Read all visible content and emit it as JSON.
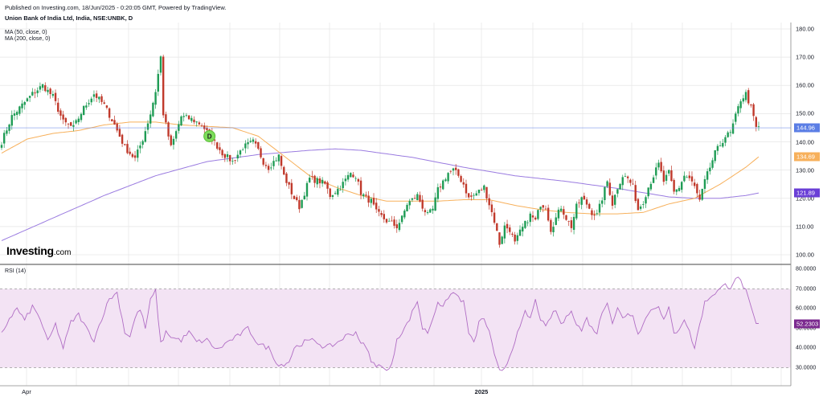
{
  "header": {
    "published": "Published on Investing.com, 18/Jun/2025 - 0:20:05 GMT, Powered by TradingView.",
    "title": "Union Bank of India Ltd, India, NSE:UNBK, D"
  },
  "legend": {
    "ma50": "MA (50, close, 0)",
    "ma200": "MA (200, close, 0)"
  },
  "logo": {
    "main": "Investing",
    "domain": ".com"
  },
  "colors": {
    "up": "#26a69a",
    "down": "#ef5350",
    "candle_up": "#1f9c55",
    "candle_down": "#c0392b",
    "ma50": "#f7b05b",
    "ma200": "#9a7be0",
    "last_price": "#5b7ee5",
    "rsi_line": "#b06dc4",
    "rsi_band": "#f3e3f4",
    "rsi_badge": "#7b2a8f",
    "grid": "#e6e6e6"
  },
  "price_axis": {
    "ticks": [
      "180.00",
      "170.00",
      "160.00",
      "150.00",
      "140.00",
      "130.00",
      "120.00",
      "110.00",
      "100.00"
    ]
  },
  "badges": {
    "last": "144.96",
    "ma50": "134.69",
    "ma200": "121.89",
    "rsi": "52.2303"
  },
  "rsi_panel": {
    "label": "RSI (14)",
    "ticks": [
      "80.0000",
      "70.0000",
      "60.0000",
      "50.0000",
      "40.0000",
      "30.0000"
    ]
  },
  "marker": {
    "label": "D"
  },
  "x_axis": {
    "ticks": [
      {
        "label": "Apr",
        "bold": false
      },
      {
        "label": "2025",
        "bold": true
      }
    ]
  },
  "chart_data": {
    "type": "candlestick",
    "title": "Union Bank of India Ltd, India, NSE:UNBK, D",
    "price_ylim": [
      98,
      182
    ],
    "rsi_ylim": [
      22,
      82
    ],
    "rsi_levels": [
      70,
      30
    ],
    "last_price": 144.96,
    "ma50_last": 134.69,
    "ma200_last": 121.89,
    "rsi_last": 52.2303,
    "close_anchors": [
      [
        0,
        140
      ],
      [
        4,
        149
      ],
      [
        8,
        153
      ],
      [
        12,
        157
      ],
      [
        16,
        160
      ],
      [
        20,
        156
      ],
      [
        24,
        147
      ],
      [
        28,
        145
      ],
      [
        32,
        152
      ],
      [
        36,
        157
      ],
      [
        40,
        153
      ],
      [
        44,
        146
      ],
      [
        48,
        138
      ],
      [
        52,
        134
      ],
      [
        55,
        141
      ],
      [
        58,
        150
      ],
      [
        60,
        158
      ],
      [
        62,
        170
      ],
      [
        63,
        150
      ],
      [
        66,
        138
      ],
      [
        70,
        149
      ],
      [
        74,
        148
      ],
      [
        78,
        146
      ],
      [
        82,
        141
      ],
      [
        86,
        136
      ],
      [
        90,
        133
      ],
      [
        94,
        138
      ],
      [
        98,
        140
      ],
      [
        100,
        137
      ],
      [
        102,
        133
      ],
      [
        104,
        131
      ],
      [
        108,
        135
      ],
      [
        110,
        128
      ],
      [
        112,
        124
      ],
      [
        114,
        120
      ],
      [
        116,
        117
      ],
      [
        118,
        122
      ],
      [
        120,
        127
      ],
      [
        124,
        126
      ],
      [
        126,
        125
      ],
      [
        128,
        121
      ],
      [
        132,
        124
      ],
      [
        136,
        129
      ],
      [
        138,
        128
      ],
      [
        140,
        122
      ],
      [
        142,
        120
      ],
      [
        144,
        119
      ],
      [
        146,
        115
      ],
      [
        150,
        112
      ],
      [
        154,
        110
      ],
      [
        156,
        113
      ],
      [
        158,
        118
      ],
      [
        162,
        121
      ],
      [
        164,
        117
      ],
      [
        166,
        114
      ],
      [
        168,
        116
      ],
      [
        170,
        123
      ],
      [
        174,
        129
      ],
      [
        176,
        130
      ],
      [
        178,
        128
      ],
      [
        180,
        125
      ],
      [
        182,
        120
      ],
      [
        184,
        121
      ],
      [
        188,
        124
      ],
      [
        190,
        118
      ],
      [
        192,
        112
      ],
      [
        194,
        104
      ],
      [
        196,
        110
      ],
      [
        198,
        109
      ],
      [
        200,
        104
      ],
      [
        202,
        108
      ],
      [
        204,
        111
      ],
      [
        206,
        114
      ],
      [
        208,
        112
      ],
      [
        210,
        118
      ],
      [
        212,
        117
      ],
      [
        214,
        109
      ],
      [
        216,
        113
      ],
      [
        218,
        117
      ],
      [
        220,
        113
      ],
      [
        222,
        110
      ],
      [
        224,
        117
      ],
      [
        226,
        120
      ],
      [
        228,
        118
      ],
      [
        230,
        115
      ],
      [
        232,
        114
      ],
      [
        234,
        120
      ],
      [
        236,
        126
      ],
      [
        238,
        118
      ],
      [
        240,
        124
      ],
      [
        242,
        128
      ],
      [
        244,
        127
      ],
      [
        246,
        124
      ],
      [
        248,
        116
      ],
      [
        250,
        119
      ],
      [
        252,
        124
      ],
      [
        254,
        128
      ],
      [
        256,
        132
      ],
      [
        258,
        126
      ],
      [
        260,
        129
      ],
      [
        262,
        122
      ],
      [
        264,
        124
      ],
      [
        266,
        128
      ],
      [
        268,
        127
      ],
      [
        270,
        124
      ],
      [
        272,
        119
      ],
      [
        274,
        126
      ],
      [
        276,
        131
      ],
      [
        278,
        136
      ],
      [
        280,
        139
      ],
      [
        282,
        142
      ],
      [
        284,
        143
      ],
      [
        286,
        149
      ],
      [
        288,
        155
      ],
      [
        290,
        157
      ],
      [
        292,
        152
      ],
      [
        294,
        145
      ],
      [
        295,
        145
      ]
    ],
    "rsi_anchors": [
      [
        0,
        47
      ],
      [
        3,
        55
      ],
      [
        6,
        60
      ],
      [
        9,
        54
      ],
      [
        12,
        61
      ],
      [
        15,
        55
      ],
      [
        18,
        43
      ],
      [
        21,
        52
      ],
      [
        24,
        40
      ],
      [
        27,
        53
      ],
      [
        30,
        57
      ],
      [
        33,
        50
      ],
      [
        36,
        44
      ],
      [
        39,
        55
      ],
      [
        42,
        65
      ],
      [
        45,
        68
      ],
      [
        48,
        48
      ],
      [
        50,
        46
      ],
      [
        52,
        55
      ],
      [
        54,
        60
      ],
      [
        56,
        50
      ],
      [
        58,
        64
      ],
      [
        60,
        69
      ],
      [
        62,
        42
      ],
      [
        64,
        48
      ],
      [
        67,
        45
      ],
      [
        70,
        44
      ],
      [
        73,
        48
      ],
      [
        76,
        43
      ],
      [
        80,
        44
      ],
      [
        84,
        39
      ],
      [
        88,
        43
      ],
      [
        92,
        46
      ],
      [
        96,
        50
      ],
      [
        100,
        42
      ],
      [
        104,
        40
      ],
      [
        108,
        31
      ],
      [
        112,
        33
      ],
      [
        114,
        40
      ],
      [
        118,
        43
      ],
      [
        122,
        44
      ],
      [
        126,
        40
      ],
      [
        130,
        42
      ],
      [
        134,
        46
      ],
      [
        138,
        48
      ],
      [
        140,
        43
      ],
      [
        142,
        40
      ],
      [
        144,
        34
      ],
      [
        146,
        30
      ],
      [
        148,
        32
      ],
      [
        150,
        28
      ],
      [
        152,
        31
      ],
      [
        154,
        45
      ],
      [
        156,
        48
      ],
      [
        158,
        52
      ],
      [
        160,
        58
      ],
      [
        162,
        64
      ],
      [
        164,
        50
      ],
      [
        166,
        48
      ],
      [
        168,
        55
      ],
      [
        170,
        64
      ],
      [
        172,
        60
      ],
      [
        174,
        66
      ],
      [
        176,
        68
      ],
      [
        178,
        66
      ],
      [
        180,
        63
      ],
      [
        182,
        48
      ],
      [
        184,
        42
      ],
      [
        186,
        53
      ],
      [
        188,
        55
      ],
      [
        190,
        48
      ],
      [
        192,
        36
      ],
      [
        194,
        28
      ],
      [
        196,
        30
      ],
      [
        198,
        36
      ],
      [
        200,
        44
      ],
      [
        202,
        50
      ],
      [
        204,
        58
      ],
      [
        206,
        55
      ],
      [
        208,
        64
      ],
      [
        210,
        55
      ],
      [
        212,
        50
      ],
      [
        214,
        56
      ],
      [
        216,
        59
      ],
      [
        218,
        52
      ],
      [
        220,
        55
      ],
      [
        222,
        60
      ],
      [
        224,
        52
      ],
      [
        226,
        49
      ],
      [
        228,
        55
      ],
      [
        230,
        50
      ],
      [
        232,
        48
      ],
      [
        234,
        58
      ],
      [
        236,
        64
      ],
      [
        238,
        53
      ],
      [
        240,
        60
      ],
      [
        242,
        55
      ],
      [
        244,
        58
      ],
      [
        246,
        56
      ],
      [
        248,
        48
      ],
      [
        250,
        52
      ],
      [
        252,
        58
      ],
      [
        254,
        60
      ],
      [
        256,
        62
      ],
      [
        258,
        54
      ],
      [
        260,
        60
      ],
      [
        262,
        47
      ],
      [
        264,
        50
      ],
      [
        266,
        55
      ],
      [
        268,
        48
      ],
      [
        270,
        40
      ],
      [
        272,
        52
      ],
      [
        274,
        63
      ],
      [
        276,
        66
      ],
      [
        278,
        68
      ],
      [
        280,
        70
      ],
      [
        282,
        72
      ],
      [
        284,
        71
      ],
      [
        286,
        76
      ],
      [
        288,
        74
      ],
      [
        290,
        69
      ],
      [
        292,
        60
      ],
      [
        294,
        52
      ],
      [
        295,
        52
      ]
    ],
    "ma50_anchors": [
      [
        0,
        136
      ],
      [
        10,
        141
      ],
      [
        20,
        143
      ],
      [
        30,
        144
      ],
      [
        40,
        146
      ],
      [
        50,
        147
      ],
      [
        60,
        147
      ],
      [
        70,
        146
      ],
      [
        80,
        145.5
      ],
      [
        90,
        145
      ],
      [
        100,
        142
      ],
      [
        110,
        135
      ],
      [
        120,
        128
      ],
      [
        130,
        124
      ],
      [
        140,
        121
      ],
      [
        150,
        119
      ],
      [
        160,
        119
      ],
      [
        170,
        119
      ],
      [
        180,
        119.5
      ],
      [
        190,
        119.5
      ],
      [
        200,
        117.5
      ],
      [
        210,
        116
      ],
      [
        220,
        115
      ],
      [
        230,
        114.5
      ],
      [
        240,
        114.5
      ],
      [
        250,
        115
      ],
      [
        260,
        118
      ],
      [
        270,
        120
      ],
      [
        280,
        125
      ],
      [
        290,
        131
      ],
      [
        295,
        134.7
      ]
    ],
    "ma200_anchors": [
      [
        0,
        105
      ],
      [
        20,
        113
      ],
      [
        40,
        121
      ],
      [
        60,
        128
      ],
      [
        80,
        133
      ],
      [
        100,
        135.5
      ],
      [
        120,
        137
      ],
      [
        130,
        137.5
      ],
      [
        140,
        137
      ],
      [
        160,
        134.5
      ],
      [
        180,
        131
      ],
      [
        200,
        128
      ],
      [
        220,
        126
      ],
      [
        240,
        123.5
      ],
      [
        250,
        122
      ],
      [
        260,
        120.5
      ],
      [
        270,
        120
      ],
      [
        280,
        120
      ],
      [
        290,
        121
      ],
      [
        295,
        121.89
      ]
    ]
  }
}
